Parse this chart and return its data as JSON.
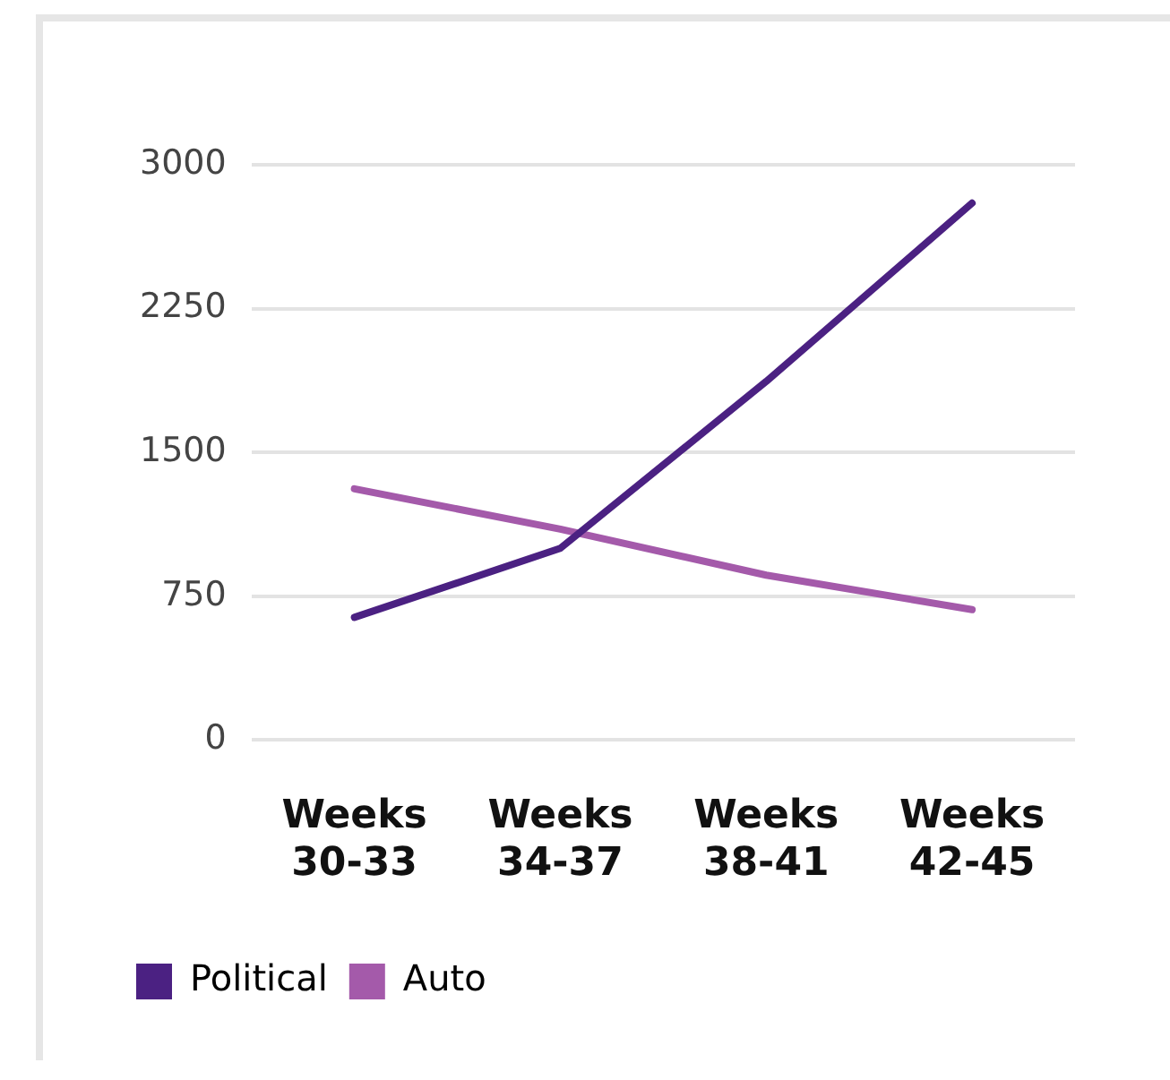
{
  "chart_data": {
    "type": "line",
    "categories": [
      "Weeks 30-33",
      "Weeks 34-37",
      "Weeks 38-41",
      "Weeks 42-45"
    ],
    "series": [
      {
        "name": "Political",
        "color": "#4b2182",
        "values": [
          640,
          1000,
          1870,
          2800
        ]
      },
      {
        "name": "Auto",
        "color": "#a45aaa",
        "values": [
          1310,
          1100,
          860,
          680
        ]
      }
    ],
    "ylim": [
      0,
      3000
    ],
    "yticks": [
      0,
      750,
      1500,
      2250,
      3000
    ],
    "grid": "y",
    "legend": "bottom left",
    "marker": "none",
    "line_style": "solid"
  }
}
